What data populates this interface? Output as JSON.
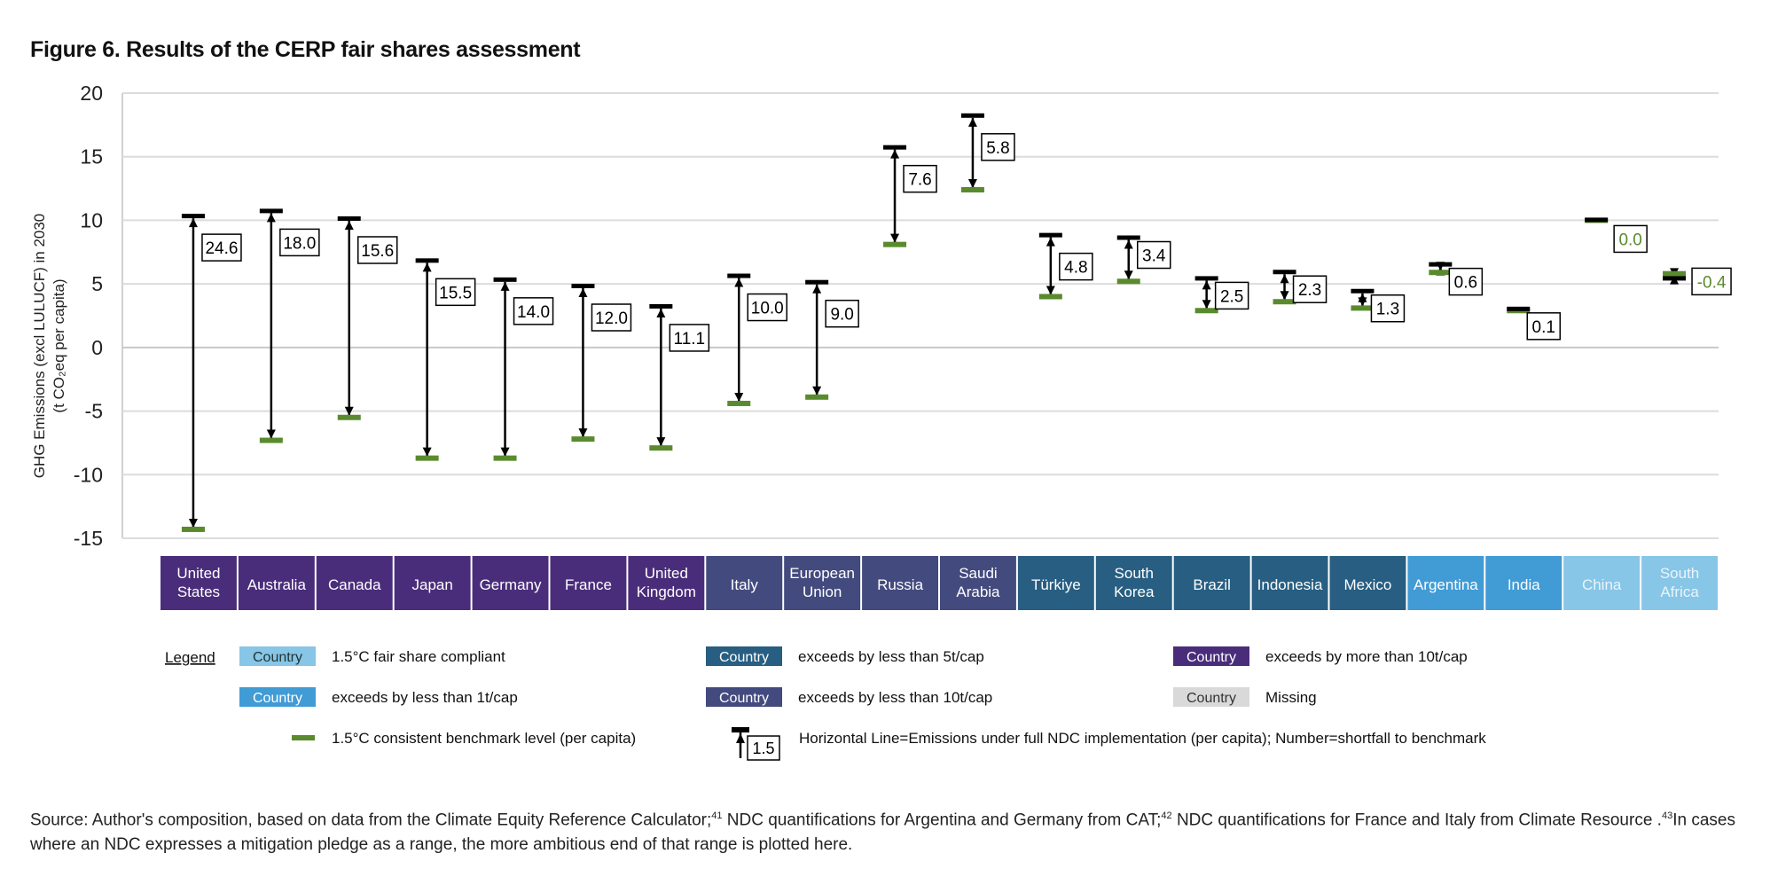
{
  "title": "Figure 6. Results of the CERP fair shares assessment",
  "chart_data": {
    "type": "range-arrows",
    "ylabel_line1": "GHG Emissions (excl LULUCF) in 2030",
    "ylabel_line2": "(t CO₂eq per capita)",
    "ylim": [
      -15,
      20
    ],
    "yticks": [
      20,
      15,
      10,
      5,
      0,
      -5,
      -10,
      -15
    ],
    "grid": true,
    "categories": [
      "United States",
      "Australia",
      "Canada",
      "Japan",
      "Germany",
      "France",
      "United Kingdom",
      "Italy",
      "European Union",
      "Russia",
      "Saudi Arabia",
      "Türkiye",
      "South Korea",
      "Brazil",
      "Indonesia",
      "Mexico",
      "Argentina",
      "India",
      "China",
      "South Africa"
    ],
    "category_status": [
      "gt10",
      "gt10",
      "gt10",
      "gt10",
      "gt10",
      "gt10",
      "gt10",
      "lt10",
      "lt10",
      "lt10",
      "lt10",
      "lt5",
      "lt5",
      "lt5",
      "lt5",
      "lt5",
      "lt1",
      "lt1",
      "compliant",
      "compliant"
    ],
    "series": [
      {
        "name": "Emissions under full NDC implementation (per capita)",
        "values": [
          10.3,
          10.7,
          10.1,
          6.8,
          5.3,
          4.8,
          3.2,
          5.6,
          5.1,
          15.7,
          18.2,
          8.8,
          8.6,
          5.4,
          5.9,
          4.4,
          6.5,
          3.0,
          10.0,
          5.4
        ]
      },
      {
        "name": "1.5°C consistent benchmark level (per capita)",
        "values": [
          -14.3,
          -7.3,
          -5.5,
          -8.7,
          -8.7,
          -7.2,
          -7.9,
          -4.4,
          -3.9,
          8.1,
          12.4,
          4.0,
          5.2,
          2.9,
          3.6,
          3.1,
          5.9,
          2.9,
          10.0,
          5.8
        ]
      }
    ],
    "shortfall_labels": [
      "24.6",
      "18.0",
      "15.6",
      "15.5",
      "14.0",
      "12.0",
      "11.1",
      "10.0",
      "9.0",
      "7.6",
      "5.8",
      "4.8",
      "3.4",
      "2.5",
      "2.3",
      "1.3",
      "0.6",
      "0.1",
      "0.0",
      "-0.4"
    ]
  },
  "colors": {
    "gt10": "#4a2d7a",
    "lt10": "#434a7e",
    "lt5": "#275e82",
    "lt1": "#419bd5",
    "compliant": "#87c6e7",
    "missing": "#d9d9d9",
    "benchmark": "#5a8a2e",
    "ndc": "#000000"
  },
  "legend": {
    "title": "Legend",
    "swatch_text": "Country",
    "items": [
      {
        "status": "compliant",
        "label": "1.5°C fair share compliant"
      },
      {
        "status": "lt5",
        "label": "exceeds by less than 5t/cap"
      },
      {
        "status": "gt10",
        "label": "exceeds by more than 10t/cap"
      },
      {
        "status": "lt1",
        "label": "exceeds by less than 1t/cap"
      },
      {
        "status": "lt10",
        "label": "exceeds by less than 10t/cap"
      },
      {
        "status": "missing",
        "label": "Missing"
      }
    ],
    "benchmark_label": "1.5°C consistent benchmark level (per capita)",
    "arrow_example_value": "1.5",
    "arrow_label": "Horizontal Line=Emissions under full NDC implementation (per capita); Number=shortfall to benchmark"
  },
  "source": {
    "part1": "Source: Author's composition, based on data from the Climate Equity Reference Calculator;",
    "ref1": "41",
    "part2": " NDC quantifications for Argentina and Germany from CAT;",
    "ref2": "42",
    "part3": " NDC quantifications for France and Italy from Climate Resource .",
    "ref3": "43",
    "part4": "In cases where an NDC expresses a mitigation pledge as a range, the more ambitious end of that range is plotted here."
  }
}
